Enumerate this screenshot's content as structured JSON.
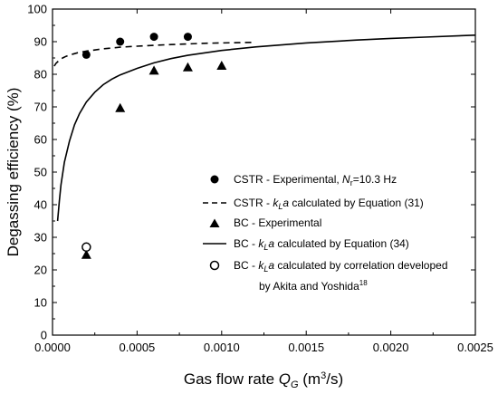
{
  "chart_data": {
    "type": "scatter",
    "xlabel": {
      "main": "Gas flow rate ",
      "sym": "Q",
      "sub": "G",
      "unit_pre": " (m",
      "unit_sup": "3",
      "unit_post": "/s)"
    },
    "ylabel": "Degassing efficiency (%)",
    "xlim": [
      0,
      0.0025
    ],
    "ylim": [
      0,
      100
    ],
    "x_ticks": [
      "0.0000",
      "0.0005",
      "0.0010",
      "0.0015",
      "0.0020",
      "0.0025"
    ],
    "y_ticks": [
      "0",
      "10",
      "20",
      "30",
      "40",
      "50",
      "60",
      "70",
      "80",
      "90",
      "100"
    ],
    "grid": false,
    "legend_position": "center-right",
    "series": [
      {
        "name": "CSTR - Experimental, N_r=10.3 Hz",
        "legend": {
          "pre": "CSTR - Experimental, ",
          "sym": "N",
          "sub": "r",
          "post": "=10.3 Hz"
        },
        "marker": "filled-circle",
        "x": [
          0.0002,
          0.0004,
          0.0006,
          0.0008
        ],
        "y": [
          86,
          90,
          91.5,
          91.5
        ]
      },
      {
        "name": "CSTR - k_La calculated by Equation (31)",
        "legend": {
          "pre": "CSTR - ",
          "sym": "k",
          "sub": "L",
          "sym2": "a",
          "post": " calculated by Equation (31)"
        },
        "line": "dashed",
        "x": [
          1e-05,
          2e-05,
          4e-05,
          6e-05,
          8e-05,
          0.0001,
          0.00015,
          0.0002,
          0.0003,
          0.0004,
          0.0005,
          0.0006,
          0.0007,
          0.0008,
          0.0009,
          0.001,
          0.0011,
          0.0012
        ],
        "y": [
          82.5,
          83.3,
          84.3,
          85.0,
          85.5,
          85.9,
          86.6,
          87.1,
          87.8,
          88.3,
          88.6,
          88.9,
          89.1,
          89.3,
          89.5,
          89.6,
          89.7,
          89.8
        ]
      },
      {
        "name": "BC - Experimental",
        "legend": {
          "pre": "BC -  Experimental"
        },
        "marker": "filled-triangle",
        "x": [
          0.0002,
          0.0004,
          0.0006,
          0.0008,
          0.001
        ],
        "y": [
          24.5,
          69.5,
          81,
          82,
          82.5
        ]
      },
      {
        "name": "BC - k_La calculated by Equation (34)",
        "legend": {
          "pre": "BC - ",
          "sym": "k",
          "sub": "L",
          "sym2": "a",
          "post": " calculated by Equation (34)"
        },
        "line": "solid",
        "x": [
          3e-05,
          4e-05,
          5e-05,
          7e-05,
          0.0001,
          0.00013,
          0.00016,
          0.0002,
          0.00025,
          0.0003,
          0.00035,
          0.0004,
          0.0005,
          0.0006,
          0.0007,
          0.0008,
          0.001,
          0.0012,
          0.0015,
          0.0018,
          0.002,
          0.0022,
          0.0025
        ],
        "y": [
          35,
          41,
          46,
          53,
          59.5,
          64.5,
          68.0,
          71.5,
          74.5,
          76.8,
          78.5,
          79.8,
          81.8,
          83.5,
          84.8,
          85.8,
          87.3,
          88.4,
          89.6,
          90.5,
          91.0,
          91.4,
          92.0
        ]
      },
      {
        "name": "BC - k_La calculated by correlation developed by Akita and Yoshida18",
        "legend": {
          "pre": "BC - ",
          "sym": "k",
          "sub": "L",
          "sym2": "a",
          "post": " calculated by correlation developed",
          "line2": "by Akita and Yoshida",
          "line2_sup": "18"
        },
        "marker": "open-circle",
        "x": [
          0.0002
        ],
        "y": [
          27
        ]
      }
    ]
  }
}
